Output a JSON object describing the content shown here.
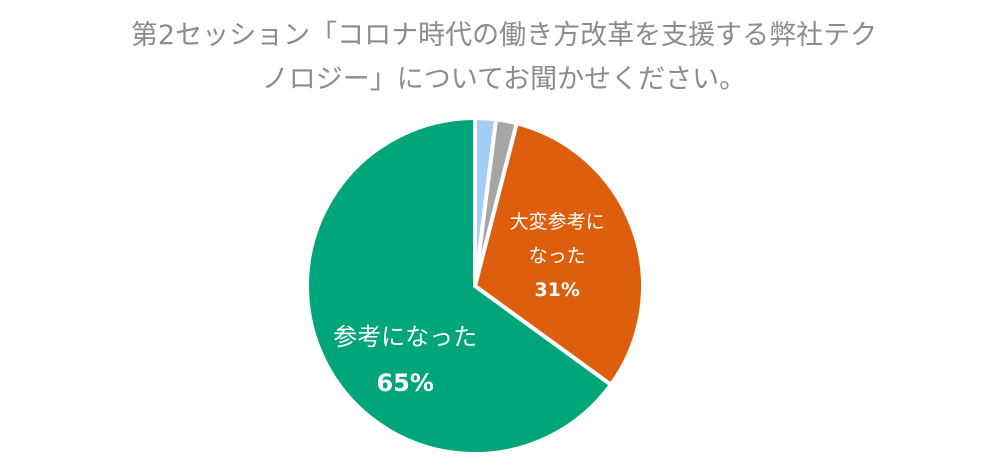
{
  "chart_data": {
    "type": "pie",
    "title": "第2セッション「コロナ時代の働き方改革を支援する弊社テクノロジー」についてお聞かせください。",
    "categories": [
      null,
      null,
      "大変参考になった",
      "参考になった"
    ],
    "values": [
      2,
      2,
      31,
      65
    ],
    "value_labels": [
      null,
      null,
      "31%",
      "65%"
    ],
    "colors": [
      "#a3cdf5",
      "#a6a6a6",
      "#dd5f0e",
      "#00a57a"
    ]
  }
}
